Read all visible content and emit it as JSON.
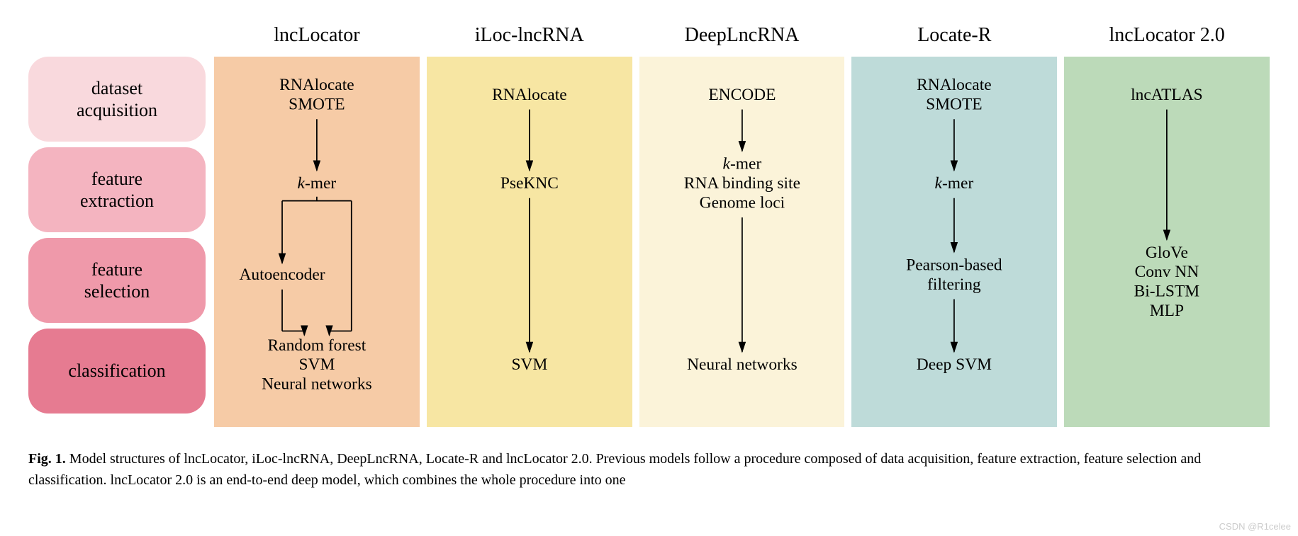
{
  "row_labels": [
    {
      "text": "dataset\nacquisition",
      "bg": "#f9d9dd"
    },
    {
      "text": "feature\nextraction",
      "bg": "#f4b4c0"
    },
    {
      "text": "feature\nselection",
      "bg": "#ef99aa"
    },
    {
      "text": "classification",
      "bg": "#e67b91"
    }
  ],
  "columns": [
    {
      "header": "lncLocator",
      "bg": "#f6cba6",
      "stages": {
        "dataset": [
          "RNAlocate",
          "SMOTE"
        ],
        "feature_ext": [
          "k-mer"
        ],
        "feature_sel": [
          "Autoencoder"
        ],
        "classification": [
          "Random forest",
          "SVM",
          "Neural networks"
        ]
      },
      "flow": "branch"
    },
    {
      "header": "iLoc-lncRNA",
      "bg": "#f7e6a3",
      "stages": {
        "dataset": [
          "RNAlocate"
        ],
        "feature_ext": [
          "PseKNC"
        ],
        "feature_sel": [],
        "classification": [
          "SVM"
        ]
      },
      "flow": "linear_skip_sel"
    },
    {
      "header": "DeepLncRNA",
      "bg": "#fbf3d9",
      "stages": {
        "dataset": [
          "ENCODE"
        ],
        "feature_ext": [
          "k-mer",
          "RNA binding site",
          "Genome loci"
        ],
        "feature_sel": [],
        "classification": [
          "Neural networks"
        ]
      },
      "flow": "linear_skip_sel"
    },
    {
      "header": "Locate-R",
      "bg": "#bedbd9",
      "stages": {
        "dataset": [
          "RNAlocate",
          "SMOTE"
        ],
        "feature_ext": [
          "k-mer"
        ],
        "feature_sel": [
          "Pearson-based",
          "filtering"
        ],
        "classification": [
          "Deep SVM"
        ]
      },
      "flow": "linear"
    },
    {
      "header": "lncLocator 2.0",
      "bg": "#bcdab9",
      "stages": {
        "dataset": [
          "lncATLAS"
        ],
        "feature_ext": [],
        "feature_sel": [
          "GloVe",
          "Conv NN",
          "Bi-LSTM",
          "MLP"
        ],
        "classification": []
      },
      "flow": "single_arrow"
    }
  ],
  "layout": {
    "col_svg_w": 280,
    "col_svg_h": 510,
    "row_y": {
      "dataset": 50,
      "feature_ext": 178,
      "feature_sel": 310,
      "classification": 440
    },
    "line_height": 28,
    "font_size": 24,
    "arrow_stroke": "#000000",
    "arrow_width": 1.8
  },
  "caption_bold": "Fig. 1.",
  "caption_text": " Model structures of lncLocator, iLoc-lncRNA, DeepLncRNA, Locate-R and lncLocator 2.0. Previous models follow a procedure composed of data acquisition, feature extraction, feature selection and classification. lncLocator 2.0 is an end-to-end deep model, which combines the whole procedure into one",
  "watermark": "CSDN @R1celee"
}
